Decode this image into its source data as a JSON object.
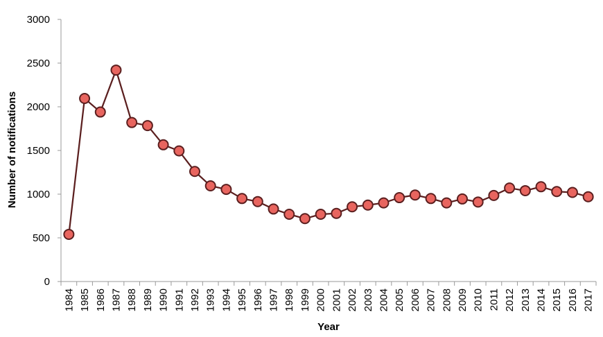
{
  "chart_data": {
    "type": "line",
    "title": "",
    "xlabel": "Year",
    "ylabel": "Number of notifications",
    "ylim": [
      0,
      3000
    ],
    "yticks": [
      0,
      500,
      1000,
      1500,
      2000,
      2500,
      3000
    ],
    "grid": false,
    "legend": "none",
    "categories": [
      "1984",
      "1985",
      "1986",
      "1987",
      "1988",
      "1989",
      "1990",
      "1991",
      "1992",
      "1993",
      "1994",
      "1995",
      "1996",
      "1997",
      "1998",
      "1999",
      "2000",
      "2001",
      "2002",
      "2003",
      "2004",
      "2005",
      "2006",
      "2007",
      "2008",
      "2009",
      "2010",
      "2011",
      "2012",
      "2013",
      "2014",
      "2015",
      "2016",
      "2017"
    ],
    "series": [
      {
        "values": [
          540,
          2095,
          1940,
          2420,
          1820,
          1785,
          1565,
          1495,
          1260,
          1095,
          1055,
          950,
          915,
          830,
          770,
          720,
          770,
          780,
          855,
          875,
          900,
          960,
          990,
          950,
          900,
          945,
          910,
          985,
          1070,
          1040,
          1085,
          1030,
          1020,
          970
        ]
      }
    ],
    "colors": {
      "line": "#5b1f1f",
      "marker_fill": "#e8655f",
      "marker_stroke": "#5b1f1f",
      "axis": "#999999"
    }
  }
}
